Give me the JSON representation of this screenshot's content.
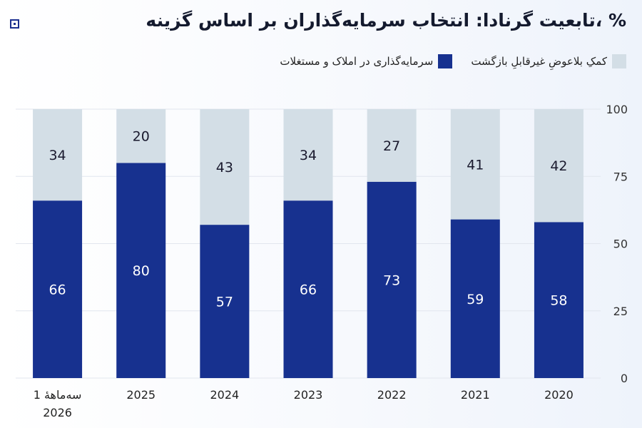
{
  "title": "% ،تابعیت گرنادا: انتخاب سرمایه‌گذاران بر اساس گزینه",
  "colors": {
    "real_estate": "#17318f",
    "donation": "#d3dee6"
  },
  "legend": [
    {
      "label": "کمکِ بلاعوضِ غیرقابلِ بازگشت",
      "color": "#d3dee6"
    },
    {
      "label": "سرمایه‌گذاری در املاک و مستغلات",
      "color": "#17318f"
    }
  ],
  "chart_data": {
    "type": "bar",
    "stacked": true,
    "categories": [
      "سه‌ماههٔ 1 2026",
      "2025",
      "2024",
      "2023",
      "2022",
      "2021",
      "2020"
    ],
    "series": [
      {
        "name": "سرمایه‌گذاری در املاک و مستغلات",
        "values": [
          66,
          80,
          57,
          66,
          73,
          59,
          58
        ]
      },
      {
        "name": "کمکِ بلاعوضِ غیرقابلِ بازگشت",
        "values": [
          34,
          20,
          43,
          34,
          27,
          41,
          42
        ]
      }
    ],
    "ylim": [
      0,
      100
    ],
    "yticks": [
      0,
      25,
      50,
      75,
      100
    ],
    "y_axis_side": "right",
    "grid": true,
    "legend_position": "top-right"
  }
}
